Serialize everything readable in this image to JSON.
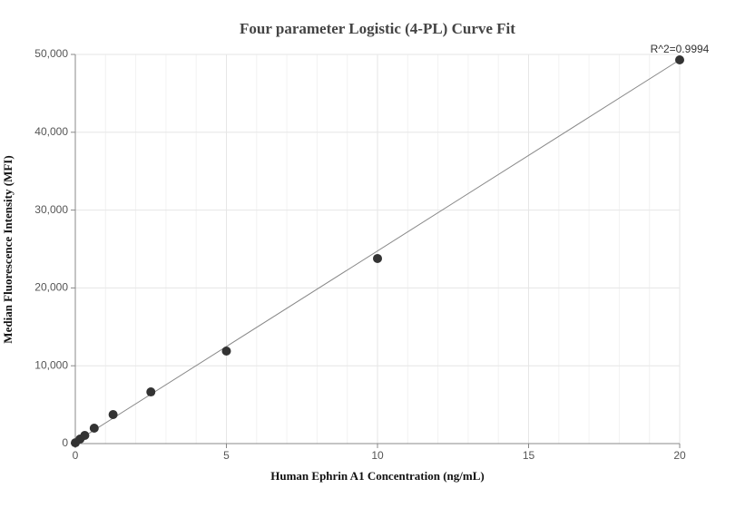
{
  "chart_data": {
    "type": "scatter",
    "title": "Four parameter Logistic (4-PL) Curve Fit",
    "x_label": "Human Ephrin A1 Concentration (ng/mL)",
    "y_label": "Median Fluorescence Intensity (MFI)",
    "annotation": "R^2=0.9994",
    "x": [
      0,
      0.156,
      0.3125,
      0.625,
      1.25,
      2.5,
      5,
      10,
      20
    ],
    "values": [
      100,
      580,
      1050,
      1980,
      3730,
      6640,
      11890,
      23780,
      49300
    ],
    "color": "#333333",
    "fit": {
      "x": [
        0,
        20
      ],
      "values": [
        200,
        49300
      ],
      "color": "#888888"
    },
    "xlim": [
      0,
      20
    ],
    "xticks": [
      0,
      5,
      10,
      15,
      20
    ],
    "xminorticks": [
      1,
      2,
      3,
      4,
      6,
      7,
      8,
      9,
      11,
      12,
      13,
      14,
      16,
      17,
      18,
      19
    ],
    "ylim": [
      0,
      50000
    ],
    "yticks": [
      0,
      {
        "value": 10000,
        "label": "10,000"
      },
      {
        "value": 20000,
        "label": "20,000"
      },
      {
        "value": 30000,
        "label": "30,000"
      },
      {
        "value": 40000,
        "label": "40,000"
      },
      {
        "value": 50000,
        "label": "50,000"
      }
    ],
    "grid": true
  }
}
